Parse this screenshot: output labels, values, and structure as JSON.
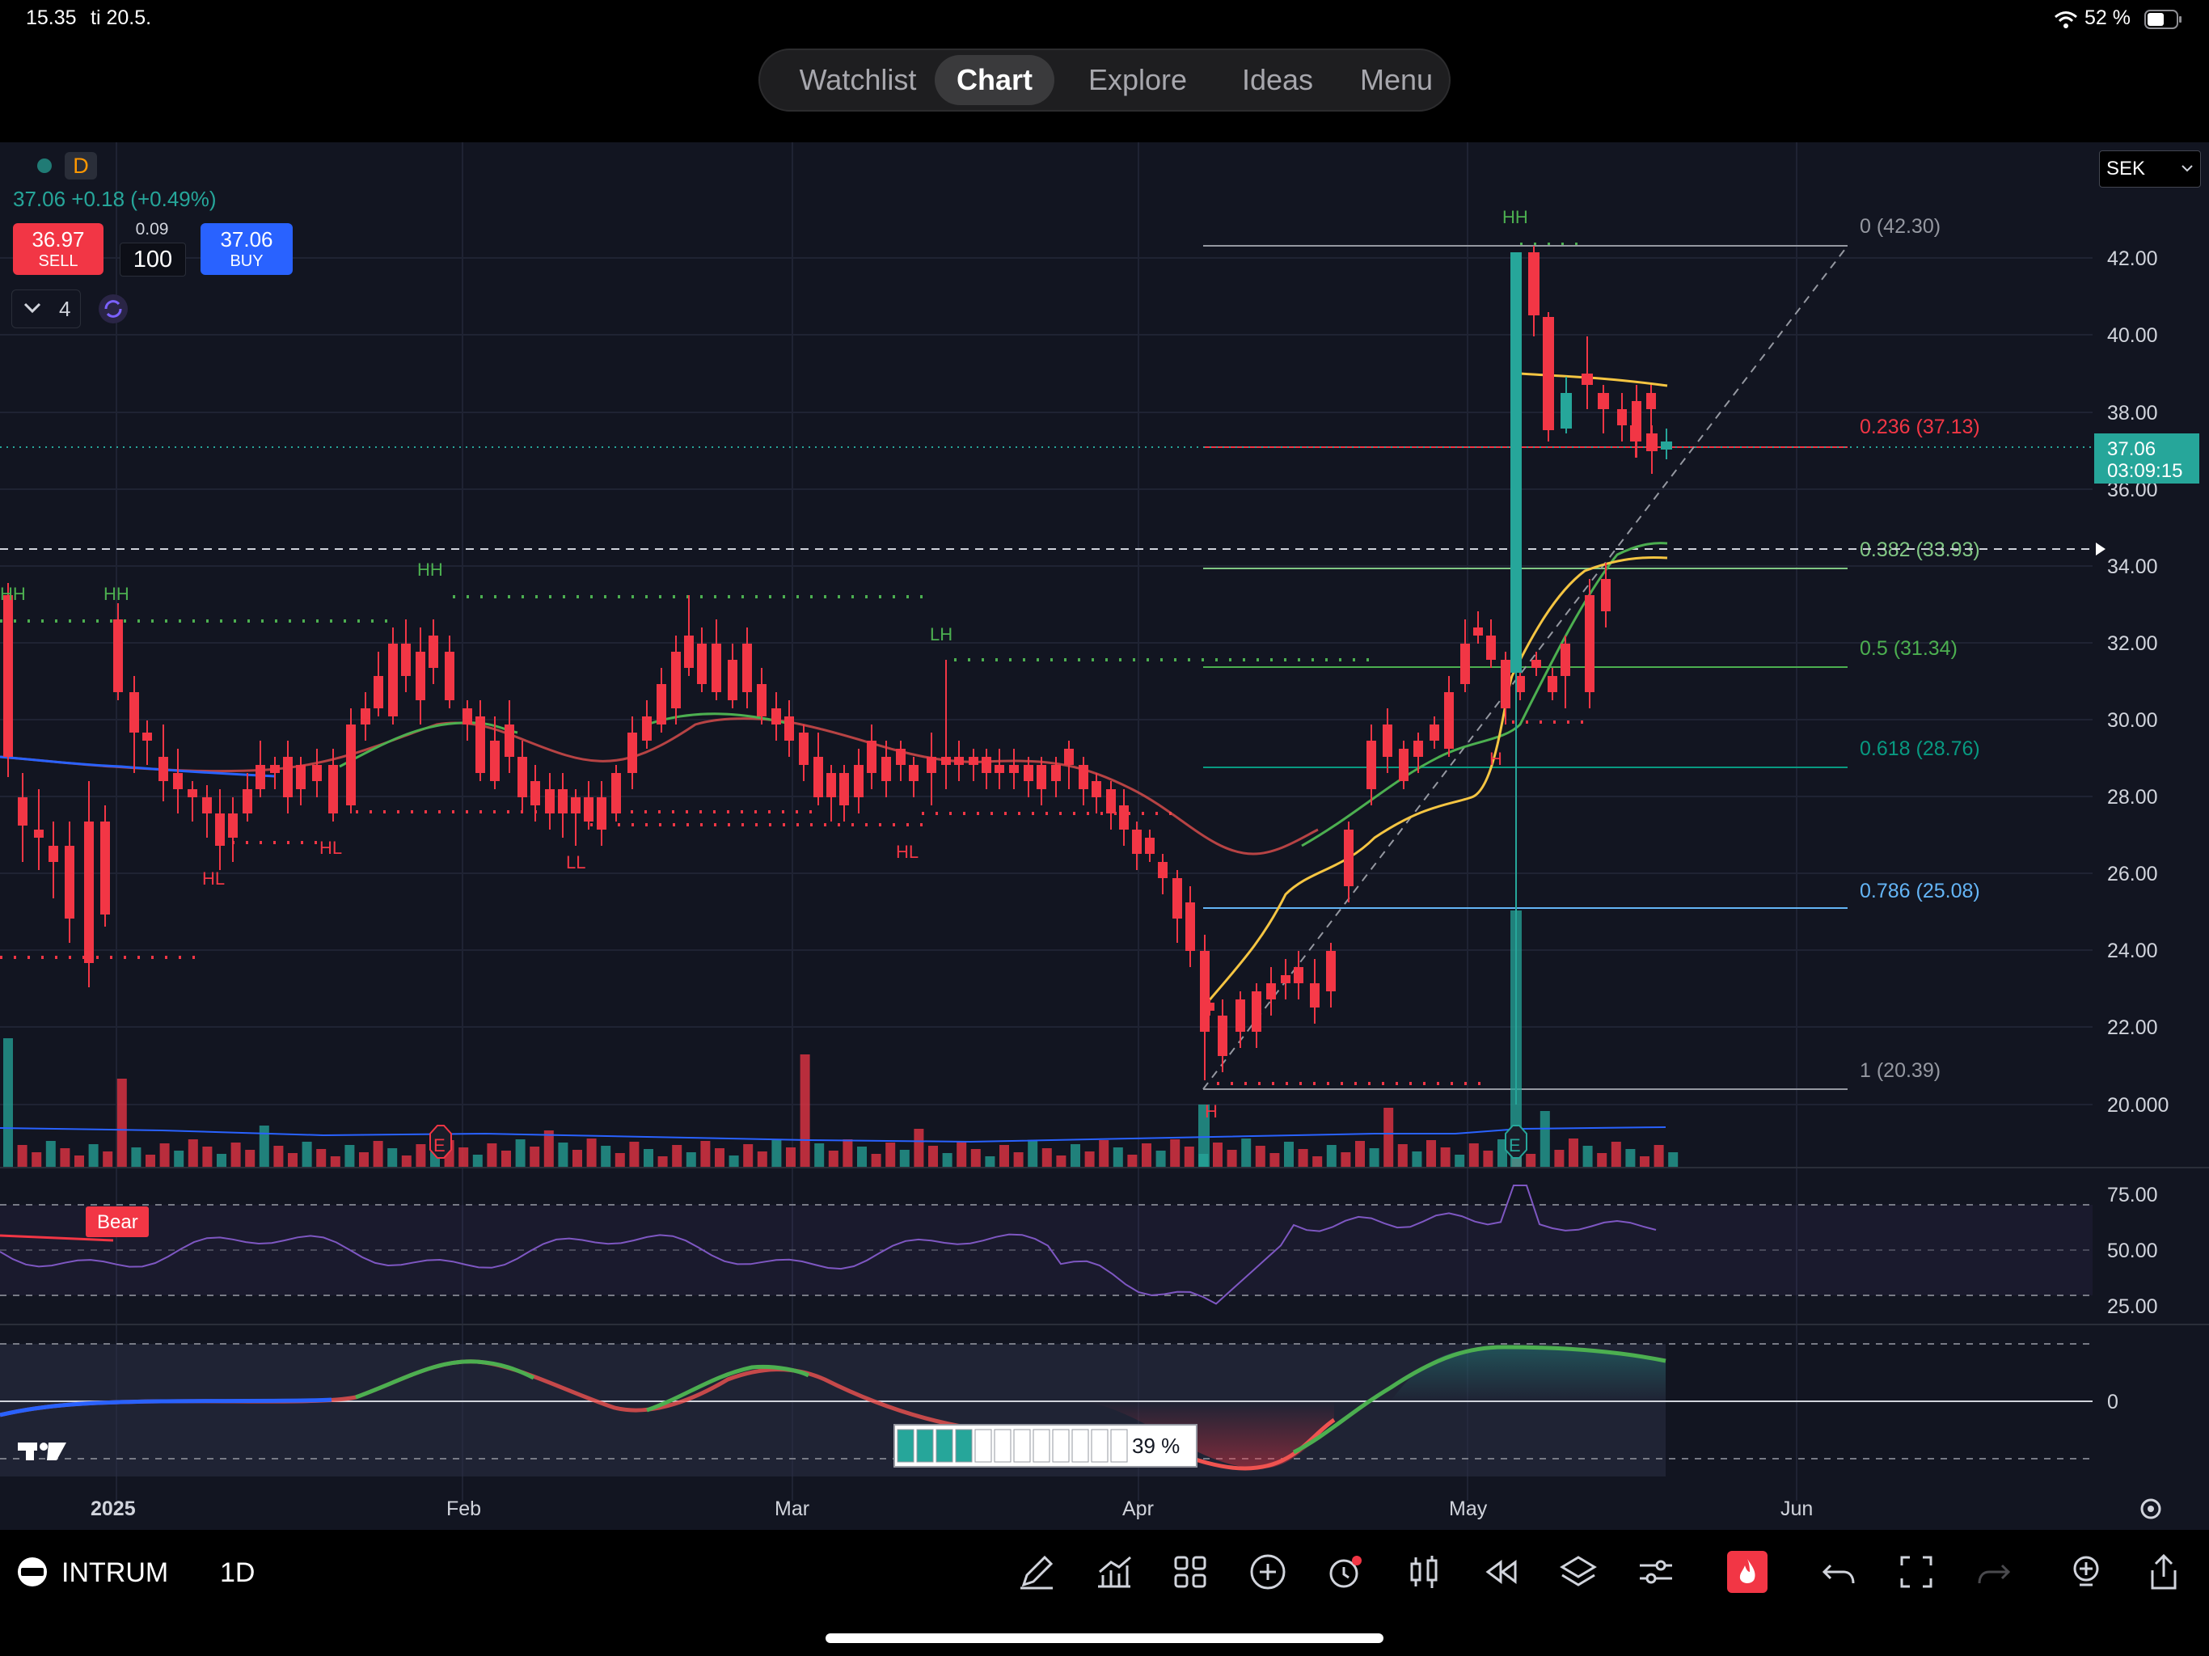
{
  "status": {
    "time": "15.35",
    "date": "ti 20.5.",
    "battery": "52 %"
  },
  "nav": {
    "tabs": [
      "Watchlist",
      "Chart",
      "Explore",
      "Ideas",
      "Menu"
    ],
    "active": "Chart"
  },
  "header": {
    "interval_badge": "D",
    "price_line": "37.06 +0.18 (+0.49%)",
    "sell_price": "36.97",
    "sell_label": "SELL",
    "spread": "0.09",
    "quantity": "100",
    "buy_price": "37.06",
    "buy_label": "BUY",
    "indicator_count": "4",
    "currency": "SEK"
  },
  "price_axis": {
    "ticks": [
      "42.00",
      "40.00",
      "38.00",
      "36.00",
      "34.00",
      "32.00",
      "30.00",
      "28.00",
      "26.00",
      "24.00",
      "22.00",
      "20.000"
    ],
    "current_price": "37.06",
    "countdown": "03:09:15"
  },
  "fib_levels": [
    {
      "label": "0 (42.30)",
      "color": "#9598a1"
    },
    {
      "label": "0.236 (37.13)",
      "color": "#f23645"
    },
    {
      "label": "0.382 (33.93)",
      "color": "#81c784"
    },
    {
      "label": "0.5 (31.34)",
      "color": "#4caf50"
    },
    {
      "label": "0.618 (28.76)",
      "color": "#089981"
    },
    {
      "label": "0.786 (25.08)",
      "color": "#64b5f6"
    },
    {
      "label": "1 (20.39)",
      "color": "#9598a1"
    }
  ],
  "swing_labels": [
    "HH",
    "HH",
    "HH",
    "HH",
    "LH",
    "HL",
    "HL",
    "LL",
    "HL",
    "H",
    "H"
  ],
  "earnings_badge": "E",
  "rsi": {
    "badge": "Bear",
    "ticks": [
      "75.00",
      "50.00",
      "25.00"
    ]
  },
  "oscillator": {
    "zero": "0",
    "percent": "39 %"
  },
  "time_axis": [
    "2025",
    "Feb",
    "Mar",
    "Apr",
    "May",
    "Jun"
  ],
  "symbol": {
    "name": "INTRUM",
    "interval": "1D"
  },
  "colors": {
    "up": "#26a69a",
    "down": "#f23645",
    "background": "#121521",
    "accent_blue": "#2962ff"
  }
}
